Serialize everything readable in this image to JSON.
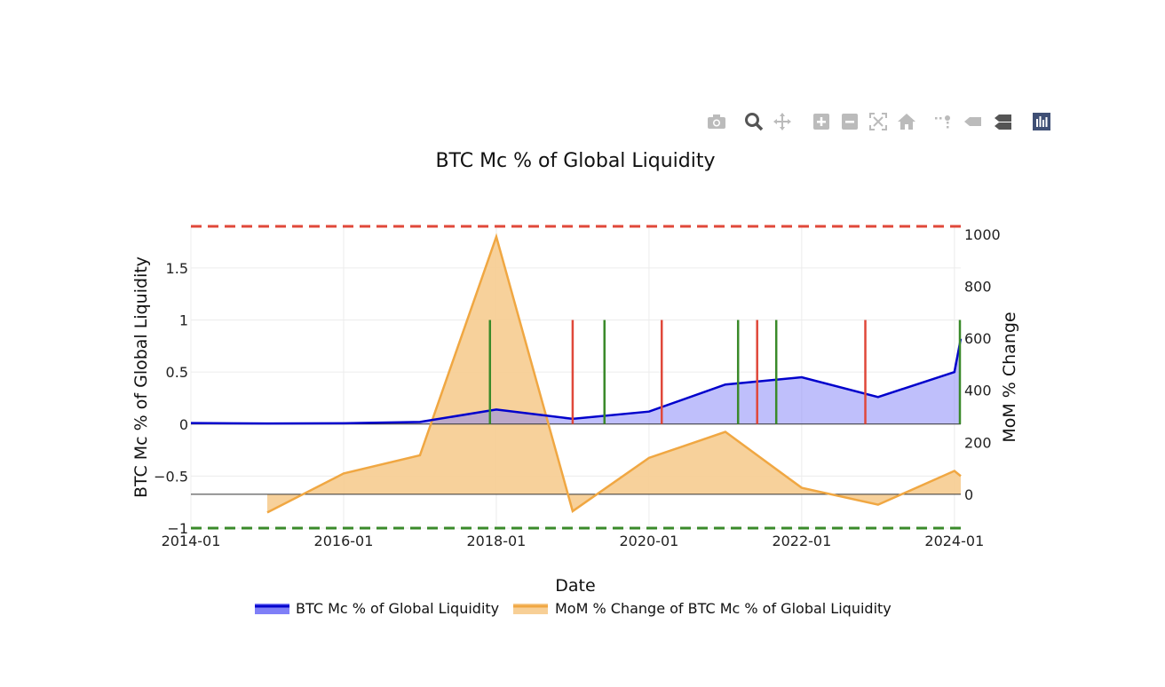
{
  "modebar": {
    "buttons": [
      {
        "name": "camera-icon"
      },
      {
        "name": "zoom-icon"
      },
      {
        "name": "pan-icon"
      },
      {
        "name": "zoom-in-icon"
      },
      {
        "name": "zoom-out-icon"
      },
      {
        "name": "autoscale-icon"
      },
      {
        "name": "reset-axes-icon"
      },
      {
        "name": "spike-lines-icon"
      },
      {
        "name": "hover-closest-icon"
      },
      {
        "name": "hover-compare-icon"
      },
      {
        "name": "plotly-logo-icon"
      }
    ]
  },
  "chart_data": {
    "type": "area",
    "title": "BTC Mc % of Global Liquidity",
    "xlabel": "Date",
    "ylabel": "BTC Mc % of Global Liquidity",
    "y2label": "MoM % Change",
    "x_ticks": [
      "2014-01",
      "2016-01",
      "2018-01",
      "2020-01",
      "2022-01",
      "2024-01"
    ],
    "y_ticks": [
      "−1",
      "−0.5",
      "0",
      "0.5",
      "1",
      "1.5"
    ],
    "y2_ticks": [
      "0",
      "200",
      "400",
      "600",
      "800",
      "1000"
    ],
    "ylim": [
      -1,
      1.9
    ],
    "y2lim": [
      -130,
      1030
    ],
    "xlim": [
      "2014-01",
      "2024-02"
    ],
    "grid": true,
    "legend_position": "bottom-center",
    "colors": {
      "btc_line": "#0000cc",
      "btc_fill": "#7f7ff7",
      "mom_line": "#f0a742",
      "mom_fill": "#f7cf96",
      "upper_threshold": "#e0483a",
      "lower_threshold": "#3a8a2a",
      "red_signal": "#e0483a",
      "green_signal": "#3a8a2a"
    },
    "series": [
      {
        "name": "BTC Mc % of Global Liquidity",
        "axis": "y",
        "x": [
          "2014-01",
          "2015-01",
          "2016-01",
          "2017-01",
          "2018-01",
          "2019-01",
          "2020-01",
          "2021-01",
          "2022-01",
          "2023-01",
          "2024-01",
          "2024-02"
        ],
        "y": [
          0.01,
          0.005,
          0.008,
          0.02,
          0.14,
          0.05,
          0.12,
          0.38,
          0.45,
          0.26,
          0.5,
          0.82
        ]
      },
      {
        "name": "MoM % Change of BTC Mc % of Global Liquidity",
        "axis": "y2",
        "x": [
          "2015-01",
          "2016-01",
          "2017-01",
          "2018-01",
          "2019-01",
          "2020-01",
          "2021-01",
          "2022-01",
          "2023-01",
          "2024-01",
          "2024-02"
        ],
        "y": [
          -70,
          80,
          150,
          990,
          -65,
          140,
          240,
          25,
          -40,
          90,
          70
        ]
      }
    ],
    "horizontal_lines": [
      {
        "axis": "y",
        "value": 1.9,
        "color": "#e0483a",
        "style": "dashed"
      },
      {
        "axis": "y",
        "value": -1.0,
        "color": "#3a8a2a",
        "style": "dashed"
      }
    ],
    "signals": [
      {
        "date": "2017-12",
        "color": "#3a8a2a"
      },
      {
        "date": "2019-01",
        "color": "#e0483a"
      },
      {
        "date": "2019-06",
        "color": "#3a8a2a"
      },
      {
        "date": "2020-03",
        "color": "#e0483a"
      },
      {
        "date": "2021-03",
        "color": "#3a8a2a"
      },
      {
        "date": "2021-06",
        "color": "#e0483a"
      },
      {
        "date": "2021-09",
        "color": "#3a8a2a"
      },
      {
        "date": "2022-11",
        "color": "#e0483a"
      },
      {
        "date": "2024-02",
        "color": "#3a8a2a"
      }
    ]
  }
}
